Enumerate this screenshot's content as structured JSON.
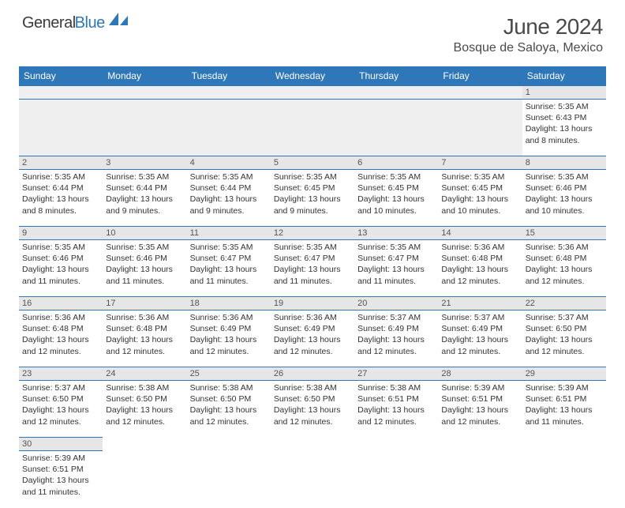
{
  "brand": {
    "general": "General",
    "blue": "Blue"
  },
  "title": "June 2024",
  "location": "Bosque de Saloya, Mexico",
  "colors": {
    "header_bg": "#2e77b8",
    "header_text": "#ffffff",
    "daynum_bg": "#e6e6e6",
    "empty_bg": "#efefef",
    "rule": "#2e77b8",
    "text": "#333333"
  },
  "day_headers": [
    "Sunday",
    "Monday",
    "Tuesday",
    "Wednesday",
    "Thursday",
    "Friday",
    "Saturday"
  ],
  "weeks": [
    [
      null,
      null,
      null,
      null,
      null,
      null,
      {
        "n": "1",
        "sr": "5:35 AM",
        "ss": "6:43 PM",
        "dl": "13 hours and 8 minutes."
      }
    ],
    [
      {
        "n": "2",
        "sr": "5:35 AM",
        "ss": "6:44 PM",
        "dl": "13 hours and 8 minutes."
      },
      {
        "n": "3",
        "sr": "5:35 AM",
        "ss": "6:44 PM",
        "dl": "13 hours and 9 minutes."
      },
      {
        "n": "4",
        "sr": "5:35 AM",
        "ss": "6:44 PM",
        "dl": "13 hours and 9 minutes."
      },
      {
        "n": "5",
        "sr": "5:35 AM",
        "ss": "6:45 PM",
        "dl": "13 hours and 9 minutes."
      },
      {
        "n": "6",
        "sr": "5:35 AM",
        "ss": "6:45 PM",
        "dl": "13 hours and 10 minutes."
      },
      {
        "n": "7",
        "sr": "5:35 AM",
        "ss": "6:45 PM",
        "dl": "13 hours and 10 minutes."
      },
      {
        "n": "8",
        "sr": "5:35 AM",
        "ss": "6:46 PM",
        "dl": "13 hours and 10 minutes."
      }
    ],
    [
      {
        "n": "9",
        "sr": "5:35 AM",
        "ss": "6:46 PM",
        "dl": "13 hours and 11 minutes."
      },
      {
        "n": "10",
        "sr": "5:35 AM",
        "ss": "6:46 PM",
        "dl": "13 hours and 11 minutes."
      },
      {
        "n": "11",
        "sr": "5:35 AM",
        "ss": "6:47 PM",
        "dl": "13 hours and 11 minutes."
      },
      {
        "n": "12",
        "sr": "5:35 AM",
        "ss": "6:47 PM",
        "dl": "13 hours and 11 minutes."
      },
      {
        "n": "13",
        "sr": "5:35 AM",
        "ss": "6:47 PM",
        "dl": "13 hours and 11 minutes."
      },
      {
        "n": "14",
        "sr": "5:36 AM",
        "ss": "6:48 PM",
        "dl": "13 hours and 12 minutes."
      },
      {
        "n": "15",
        "sr": "5:36 AM",
        "ss": "6:48 PM",
        "dl": "13 hours and 12 minutes."
      }
    ],
    [
      {
        "n": "16",
        "sr": "5:36 AM",
        "ss": "6:48 PM",
        "dl": "13 hours and 12 minutes."
      },
      {
        "n": "17",
        "sr": "5:36 AM",
        "ss": "6:48 PM",
        "dl": "13 hours and 12 minutes."
      },
      {
        "n": "18",
        "sr": "5:36 AM",
        "ss": "6:49 PM",
        "dl": "13 hours and 12 minutes."
      },
      {
        "n": "19",
        "sr": "5:36 AM",
        "ss": "6:49 PM",
        "dl": "13 hours and 12 minutes."
      },
      {
        "n": "20",
        "sr": "5:37 AM",
        "ss": "6:49 PM",
        "dl": "13 hours and 12 minutes."
      },
      {
        "n": "21",
        "sr": "5:37 AM",
        "ss": "6:49 PM",
        "dl": "13 hours and 12 minutes."
      },
      {
        "n": "22",
        "sr": "5:37 AM",
        "ss": "6:50 PM",
        "dl": "13 hours and 12 minutes."
      }
    ],
    [
      {
        "n": "23",
        "sr": "5:37 AM",
        "ss": "6:50 PM",
        "dl": "13 hours and 12 minutes."
      },
      {
        "n": "24",
        "sr": "5:38 AM",
        "ss": "6:50 PM",
        "dl": "13 hours and 12 minutes."
      },
      {
        "n": "25",
        "sr": "5:38 AM",
        "ss": "6:50 PM",
        "dl": "13 hours and 12 minutes."
      },
      {
        "n": "26",
        "sr": "5:38 AM",
        "ss": "6:50 PM",
        "dl": "13 hours and 12 minutes."
      },
      {
        "n": "27",
        "sr": "5:38 AM",
        "ss": "6:51 PM",
        "dl": "13 hours and 12 minutes."
      },
      {
        "n": "28",
        "sr": "5:39 AM",
        "ss": "6:51 PM",
        "dl": "13 hours and 12 minutes."
      },
      {
        "n": "29",
        "sr": "5:39 AM",
        "ss": "6:51 PM",
        "dl": "13 hours and 11 minutes."
      }
    ],
    [
      {
        "n": "30",
        "sr": "5:39 AM",
        "ss": "6:51 PM",
        "dl": "13 hours and 11 minutes."
      },
      null,
      null,
      null,
      null,
      null,
      null
    ]
  ],
  "labels": {
    "sunrise": "Sunrise:",
    "sunset": "Sunset:",
    "daylight": "Daylight:"
  }
}
